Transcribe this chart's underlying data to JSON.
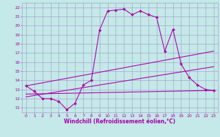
{
  "xlabel": "Windchill (Refroidissement éolien,°C)",
  "xlim": [
    -0.5,
    23.5
  ],
  "ylim": [
    10.5,
    22.5
  ],
  "xticks": [
    0,
    1,
    2,
    3,
    4,
    5,
    6,
    7,
    8,
    9,
    10,
    11,
    12,
    13,
    14,
    15,
    16,
    17,
    18,
    19,
    20,
    21,
    22,
    23
  ],
  "yticks": [
    11,
    12,
    13,
    14,
    15,
    16,
    17,
    18,
    19,
    20,
    21,
    22
  ],
  "background_color": "#c5e8e8",
  "grid_color": "#a0a8c8",
  "line_color": "#aa00aa",
  "line1_x": [
    0,
    1,
    2,
    3,
    4,
    5,
    6,
    7,
    8,
    9,
    10,
    11,
    12,
    13,
    14,
    15,
    16,
    17,
    18,
    19,
    20,
    21,
    22,
    23
  ],
  "line1_y": [
    13.4,
    12.8,
    12.0,
    12.0,
    11.7,
    10.8,
    11.5,
    13.5,
    14.0,
    19.5,
    21.6,
    21.7,
    21.8,
    21.2,
    21.6,
    21.2,
    20.9,
    17.2,
    19.6,
    15.8,
    14.3,
    13.5,
    13.0,
    12.9
  ],
  "line2_x": [
    0,
    23
  ],
  "line2_y": [
    12.5,
    12.9
  ],
  "line3_x": [
    0,
    23
  ],
  "line3_y": [
    12.2,
    15.5
  ],
  "line4_x": [
    0,
    23
  ],
  "line4_y": [
    13.4,
    17.2
  ],
  "tick_fontsize": 4.5,
  "xlabel_fontsize": 5.5,
  "line_width": 0.8,
  "marker_size": 2.0
}
